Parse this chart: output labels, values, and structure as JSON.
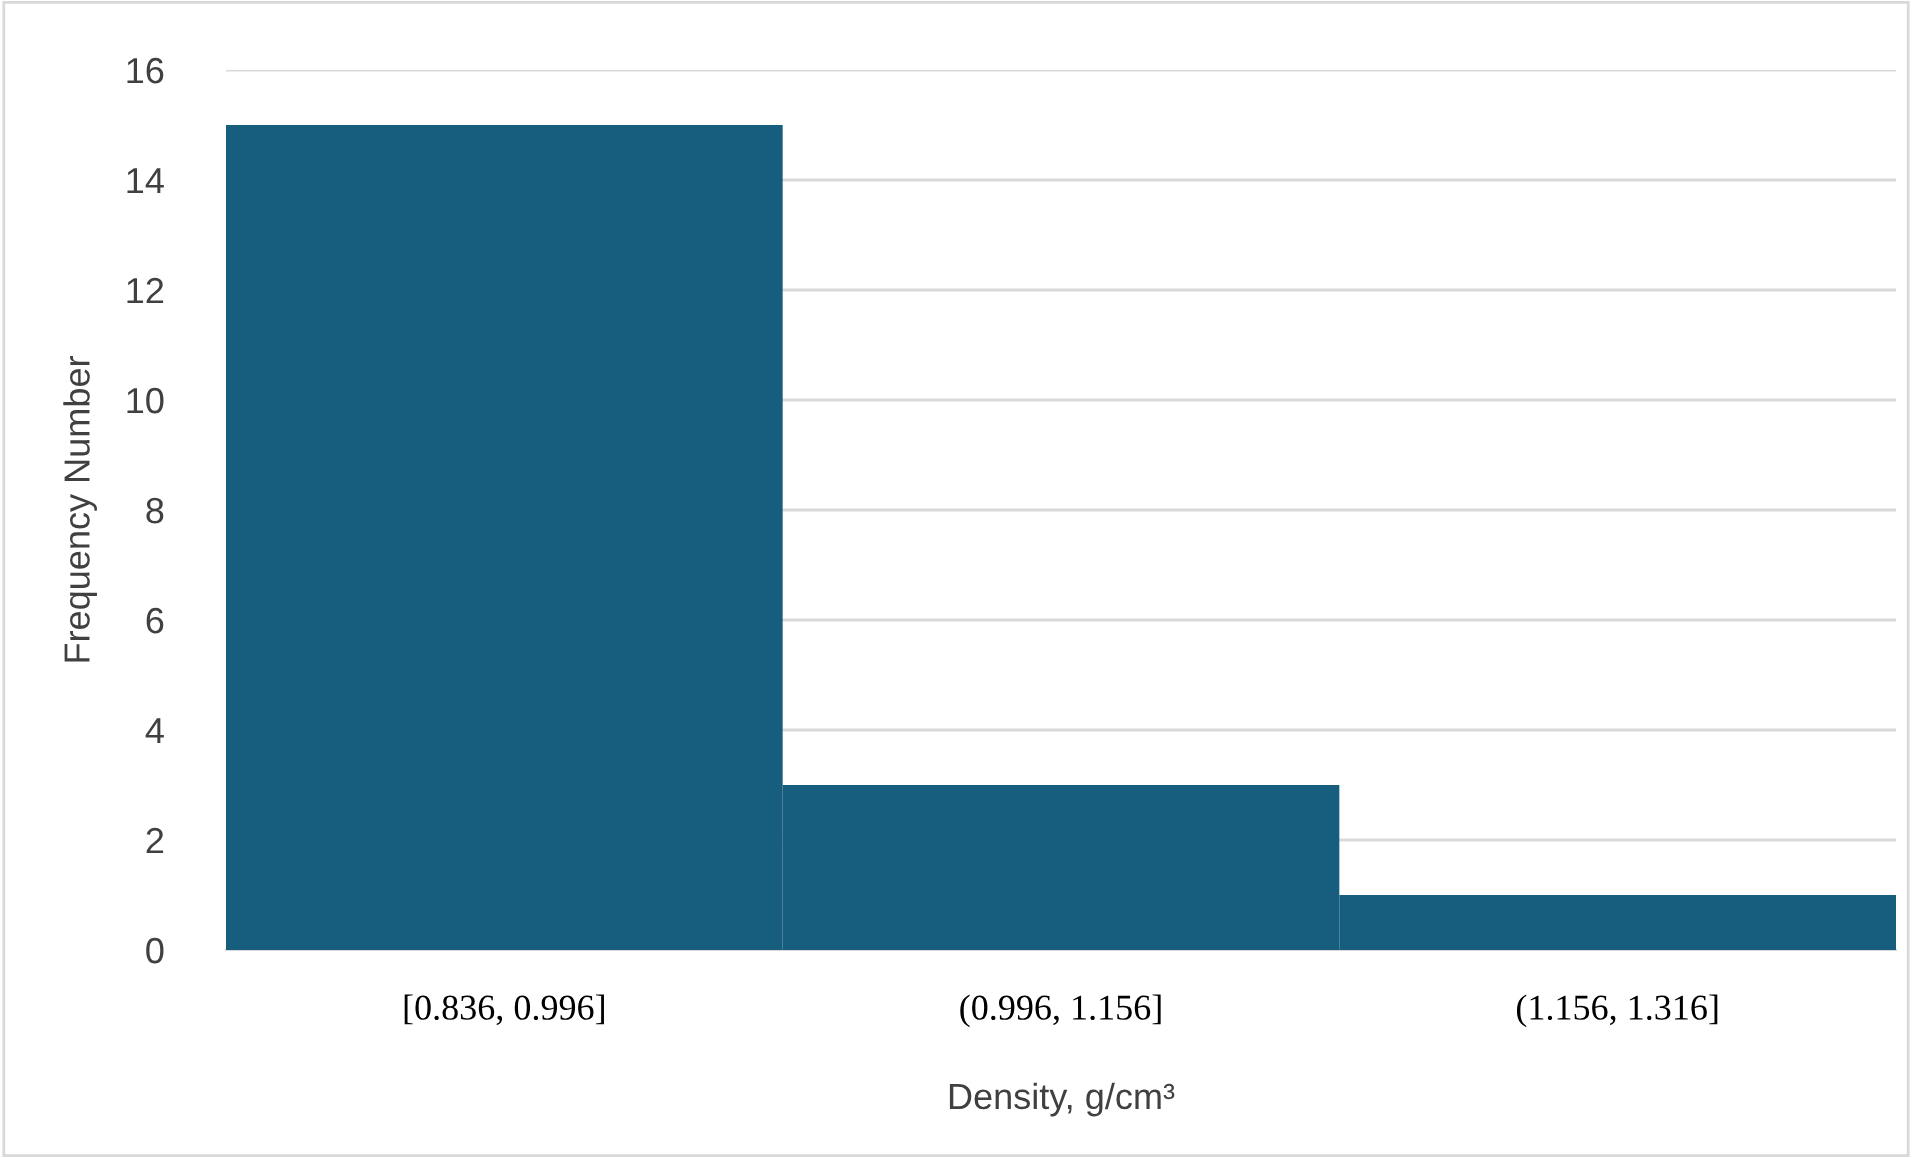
{
  "chart_data": {
    "type": "bar",
    "xlabel": "Density, g/cm³",
    "ylabel": "Frequency Number",
    "categories": [
      "[0.836, 0.996]",
      "(0.996, 1.156]",
      "(1.156, 1.316]"
    ],
    "values": [
      15,
      3,
      1
    ],
    "color": "#175e7e",
    "ylim": [
      0,
      16
    ],
    "yticks": [
      0,
      2,
      4,
      6,
      8,
      10,
      12,
      14,
      16
    ],
    "grid": "y"
  }
}
